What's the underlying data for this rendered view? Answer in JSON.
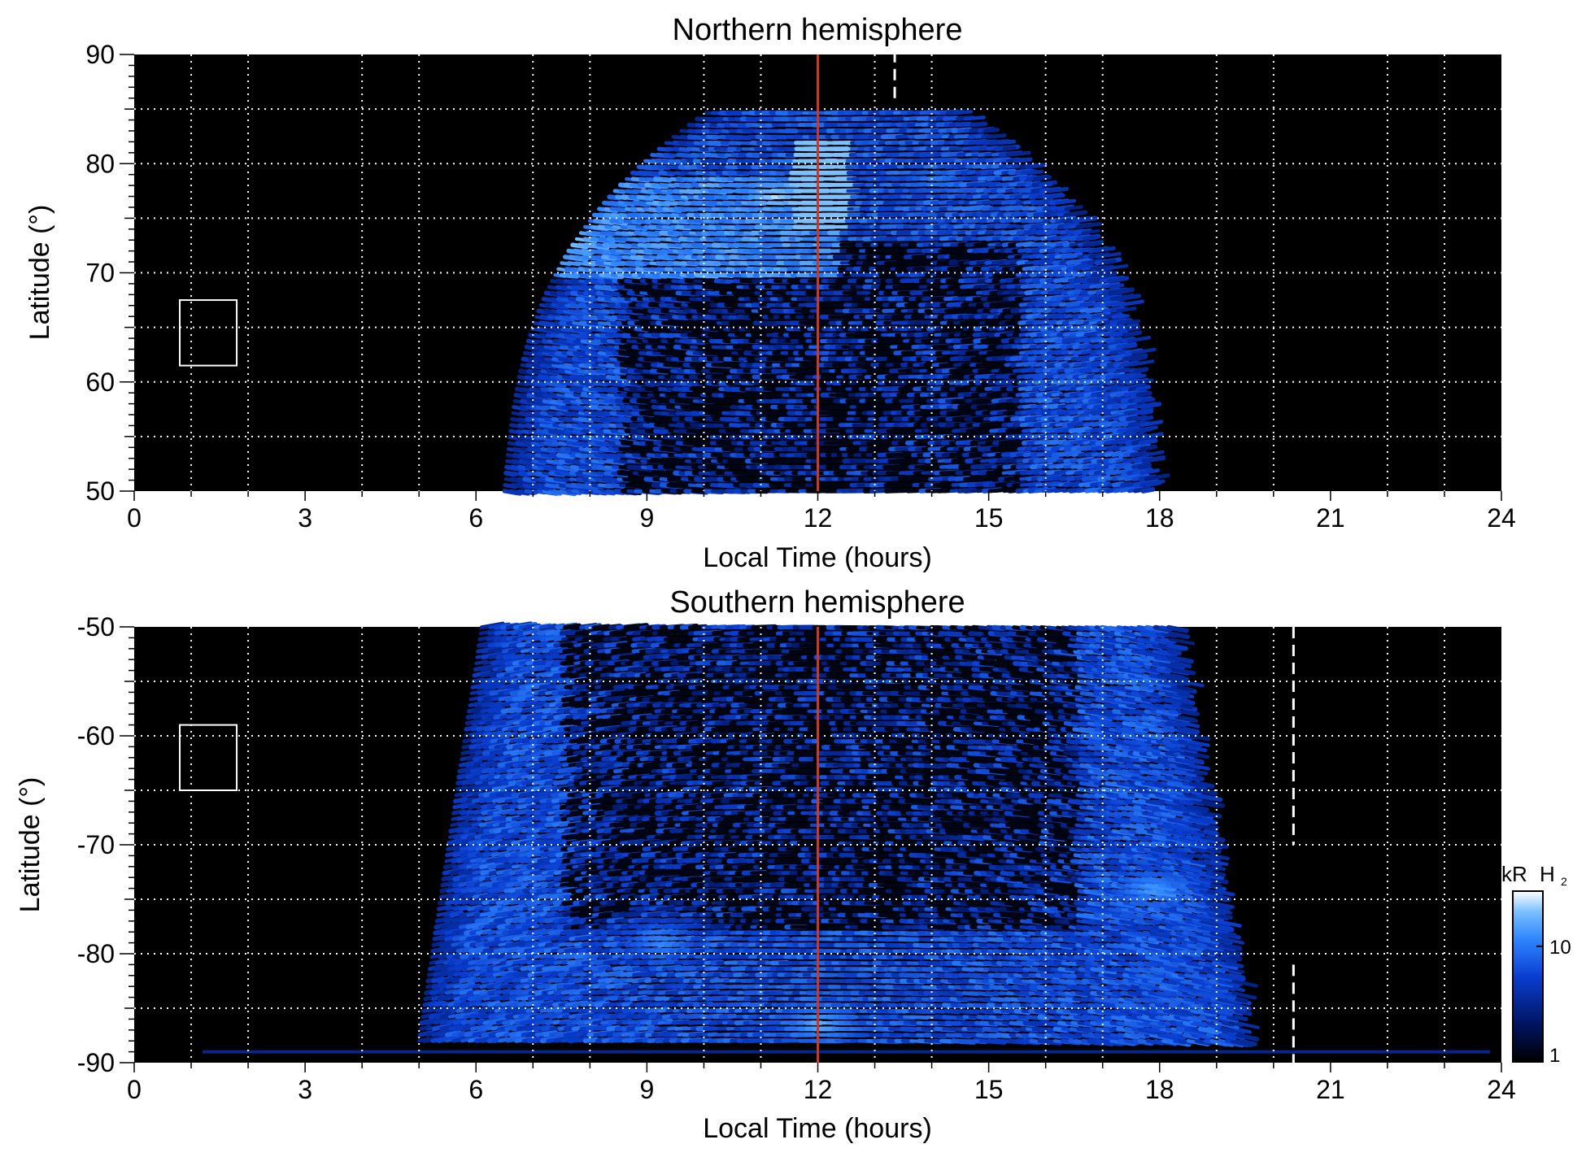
{
  "chart_data": [
    {
      "type": "heatmap",
      "title": "Northern hemisphere",
      "xlabel": "Local Time (hours)",
      "ylabel": "Latitude (°)",
      "xlim": [
        0,
        24
      ],
      "ylim": [
        50,
        90
      ],
      "xticks": [
        0,
        3,
        6,
        9,
        12,
        15,
        18,
        21,
        24
      ],
      "xtick_labels": [
        "0",
        "3",
        "6",
        "9",
        "12",
        "15",
        "18",
        "21",
        "24"
      ],
      "yticks": [
        50,
        60,
        70,
        80,
        90
      ],
      "ytick_labels": [
        "50",
        "60",
        "70",
        "80",
        "90"
      ],
      "grid": true,
      "grid_x": [
        1,
        2,
        4,
        5,
        7,
        8,
        10,
        11,
        13,
        14,
        16,
        17,
        19,
        20,
        22,
        23
      ],
      "grid_y": [
        55,
        60,
        65,
        70,
        75,
        80,
        85
      ],
      "red_line_lt": 12,
      "dashed_line_lt": 13.35,
      "dashed_segments": [
        [
          86,
          90
        ]
      ],
      "box": {
        "lt": [
          0.8,
          1.8
        ],
        "lat": [
          61.5,
          67.5
        ]
      },
      "emission_region": {
        "bottom_lt": [
          6.5,
          17.8
        ],
        "top_lat": 85,
        "lobe": {
          "lt": [
            7.2,
            12.3
          ],
          "lat": [
            69.5,
            79
          ]
        },
        "peak_spots": [
          {
            "lt": 7.6,
            "lat": 73,
            "level": 0.95
          },
          {
            "lt": 11.2,
            "lat": 77,
            "level": 0.95
          },
          {
            "lt": 11.9,
            "lat": 86.5,
            "level": 0.9
          },
          {
            "lt": 8.9,
            "lat": 80.5,
            "level": 0.7
          },
          {
            "lt": 14.0,
            "lat": 78.5,
            "level": 0.7
          }
        ],
        "dark_core": {
          "lt": [
            8.5,
            15.5
          ],
          "lat": [
            50,
            73
          ]
        }
      }
    },
    {
      "type": "heatmap",
      "title": "Southern hemisphere",
      "xlabel": "Local Time (hours)",
      "ylabel": "Latitude (°)",
      "xlim": [
        0,
        24
      ],
      "ylim": [
        -90,
        -50
      ],
      "xticks": [
        0,
        3,
        6,
        9,
        12,
        15,
        18,
        21,
        24
      ],
      "xtick_labels": [
        "0",
        "3",
        "6",
        "9",
        "12",
        "15",
        "18",
        "21",
        "24"
      ],
      "yticks": [
        -90,
        -80,
        -70,
        -60,
        -50
      ],
      "ytick_labels": [
        "-90",
        "-80",
        "-70",
        "-60",
        "-50"
      ],
      "grid": true,
      "grid_x": [
        1,
        2,
        4,
        5,
        7,
        8,
        10,
        11,
        13,
        14,
        16,
        17,
        19,
        20,
        22,
        23
      ],
      "grid_y": [
        -85,
        -80,
        -75,
        -70,
        -65,
        -60,
        -55
      ],
      "red_line_lt": 12,
      "dashed_line_lt": 20.35,
      "dashed_segments": [
        [
          -50,
          -70
        ],
        [
          -81,
          -90
        ]
      ],
      "box": {
        "lt": [
          0.8,
          1.8
        ],
        "lat": [
          -65,
          -59
        ]
      },
      "emission_region": {
        "top_lt": [
          6.1,
          18.2
        ],
        "bottom_lt": [
          5.0,
          19.5
        ],
        "bottom_lat": -88,
        "floor_streak": {
          "lt": [
            1.2,
            23.8
          ],
          "lat": -89
        },
        "peak_spots": [
          {
            "lt": 9.2,
            "lat": -79,
            "level": 0.75
          },
          {
            "lt": 17.8,
            "lat": -74,
            "level": 0.8
          },
          {
            "lt": 12.0,
            "lat": -86.5,
            "level": 0.85
          }
        ],
        "dark_core": {
          "lt": [
            7.5,
            16.5
          ],
          "lat": [
            -50,
            -78
          ]
        }
      }
    }
  ],
  "colorbar": {
    "label_main": "kR",
    "label_species": "H",
    "label_sub": "2",
    "scale": "log",
    "range": [
      1,
      30
    ],
    "ticks": [
      1,
      10
    ],
    "tick_labels": [
      "1",
      "10"
    ],
    "colors": [
      "#000000",
      "#001460",
      "#0a3ed0",
      "#2f86ff",
      "#7cc0ff",
      "#ffffff"
    ]
  },
  "colors": {
    "background": "#000000",
    "grid": "#ffffff",
    "meridian": "#d2361b",
    "dashed_marker": "#ffffff",
    "box": "#ffffff"
  }
}
